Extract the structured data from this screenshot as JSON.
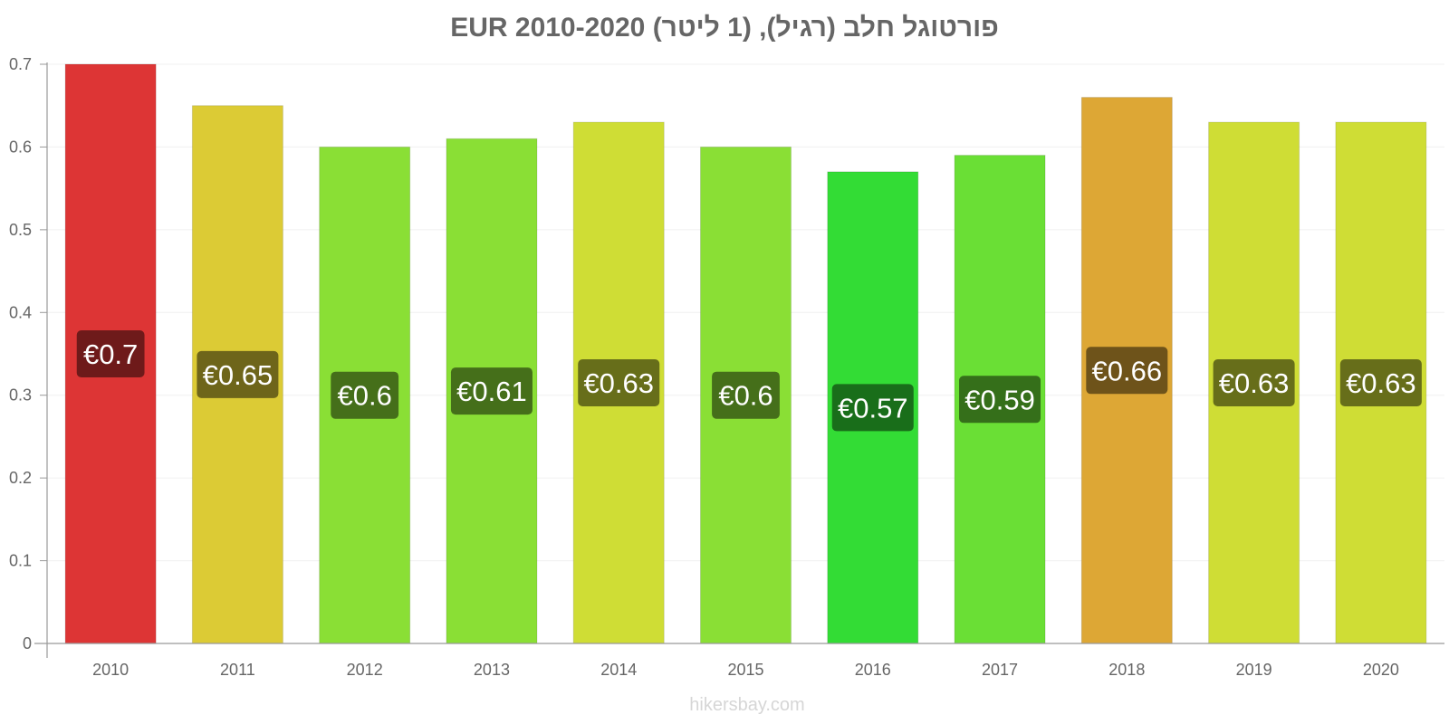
{
  "chart_data": {
    "type": "bar",
    "title": "פורטוגל חלב (רגיל), (1 ליטר) EUR 2010-2020",
    "xlabel": "",
    "ylabel": "",
    "categories": [
      "2010",
      "2011",
      "2012",
      "2013",
      "2014",
      "2015",
      "2016",
      "2017",
      "2018",
      "2019",
      "2020"
    ],
    "values": [
      0.7,
      0.65,
      0.6,
      0.61,
      0.63,
      0.6,
      0.57,
      0.59,
      0.66,
      0.63,
      0.63
    ],
    "data_labels": [
      "€0.7",
      "€0.65",
      "€0.6",
      "€0.61",
      "€0.63",
      "€0.6",
      "€0.57",
      "€0.59",
      "€0.66",
      "€0.63",
      "€0.63"
    ],
    "bar_colors": [
      "#dd3535",
      "#dccb35",
      "#8adf35",
      "#8adf35",
      "#cfdd35",
      "#8adf35",
      "#33dc35",
      "#6adf35",
      "#dda735",
      "#cfdd35",
      "#cfdd35"
    ],
    "label_colors": [
      "#6e1a1a",
      "#6e651a",
      "#456f1a",
      "#456f1a",
      "#676e1a",
      "#456f1a",
      "#196e1a",
      "#356f1a",
      "#6e531a",
      "#676e1a",
      "#676e1a"
    ],
    "ylim": [
      0,
      0.7
    ],
    "yticks": [
      "0",
      "0.1",
      "0.2",
      "0.3",
      "0.4",
      "0.5",
      "0.6",
      "0.7"
    ],
    "grid": true,
    "legend": "none"
  },
  "watermark": "hikersbay.com"
}
